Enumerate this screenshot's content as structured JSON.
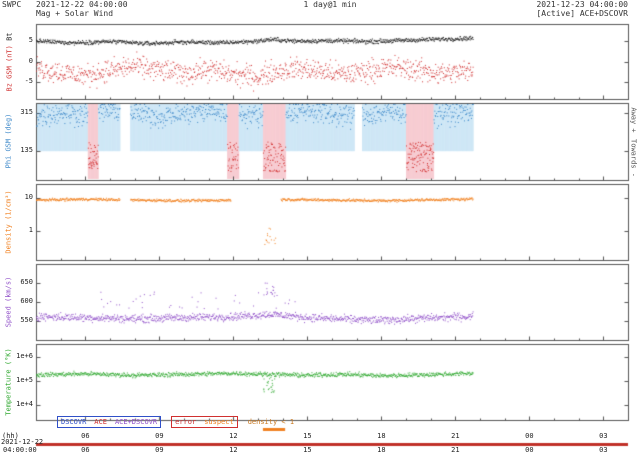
{
  "header": {
    "app": "SWPC",
    "start_time": "2021-12-22 04:00:00",
    "plot_type": "Mag + Solar Wind",
    "resolution": "1 day@1 min",
    "end_time": "2021-12-23 04:00:00",
    "status": "[Active] ACE+DSCOVR"
  },
  "side_labels": {
    "away": "Away +",
    "toward": "Towards -"
  },
  "legend": {
    "dscovr": "DSCOVR",
    "ace": "ACE",
    "ace_dscovr": "ACE+DSCOVR",
    "error": "error",
    "suspect": "suspect",
    "density_lt1": "density < 1"
  },
  "axis_footer": {
    "unit_label": "(hh)",
    "date_label": "2021-12-22",
    "time_label": "04:00:00"
  },
  "colors": {
    "frame": "#555555",
    "bt": "#1a1a1a",
    "bz": "#d03030",
    "phi": "#3b87c8",
    "phi_toward": "#d03030",
    "density": "#f08020",
    "speed": "#9050c8",
    "temperature": "#30a830",
    "away_band": "#cfe7f6",
    "toward_band": "#f7ccd2",
    "suspect": "#f08020",
    "source_bar": "#c03028"
  },
  "chart_data": {
    "type": "scatter",
    "title": "Mag + Solar Wind",
    "cadence": "1 day@1 min",
    "data_end_hour": 17.7,
    "x_axis": {
      "unit": "hh",
      "start": "2021-12-22 04:00:00",
      "end": "2021-12-23 04:00:00",
      "range_hours": [
        0,
        24
      ],
      "ticks": [
        {
          "t": 2,
          "label": "06"
        },
        {
          "t": 5,
          "label": "09"
        },
        {
          "t": 8,
          "label": "12"
        },
        {
          "t": 11,
          "label": "15"
        },
        {
          "t": 14,
          "label": "18"
        },
        {
          "t": 17,
          "label": "21"
        },
        {
          "t": 20,
          "label": "00"
        },
        {
          "t": 23,
          "label": "03"
        }
      ]
    },
    "quality_bars": {
      "suspect_intervals": [
        [
          9.2,
          10.1
        ]
      ],
      "source_bar": {
        "color": "#c03028",
        "interval": [
          0,
          24
        ]
      }
    },
    "panels": [
      {
        "id": "mag",
        "label": "Bt Bz GSM (nT)",
        "label_bt": "Bt",
        "label_bz": "Bz GSM (nT)",
        "scale": "linear",
        "ylim": [
          -9,
          9
        ],
        "yticks": [
          {
            "v": 5,
            "label": "5"
          },
          {
            "v": 0,
            "label": "0"
          },
          {
            "v": -5,
            "label": "-5"
          }
        ],
        "series": [
          {
            "name": "Bt",
            "color": "bt",
            "type": "noisy",
            "noise": 0.25,
            "points": [
              [
                0,
                5.0
              ],
              [
                1.5,
                4.6
              ],
              [
                3,
                4.9
              ],
              [
                4.5,
                4.4
              ],
              [
                6,
                4.8
              ],
              [
                7.5,
                4.6
              ],
              [
                9,
                5.0
              ],
              [
                9.5,
                5.4
              ],
              [
                10.5,
                5.0
              ],
              [
                12,
                5.1
              ],
              [
                13.5,
                4.9
              ],
              [
                15,
                5.2
              ],
              [
                16.5,
                5.5
              ],
              [
                17.7,
                5.7
              ]
            ]
          },
          {
            "name": "Bz",
            "color": "bz",
            "type": "noisy",
            "noise": 1.3,
            "points": [
              [
                0,
                -1.5
              ],
              [
                1,
                -2.5
              ],
              [
                2,
                -3.3
              ],
              [
                3,
                -2.0
              ],
              [
                4,
                -1.0
              ],
              [
                5,
                -2.0
              ],
              [
                6,
                -2.8
              ],
              [
                7,
                -1.8
              ],
              [
                8,
                -3.0
              ],
              [
                9,
                -3.6
              ],
              [
                9.5,
                -2.5
              ],
              [
                10.5,
                -1.5
              ],
              [
                11.5,
                -2.2
              ],
              [
                12.5,
                -3.0
              ],
              [
                13.5,
                -2.0
              ],
              [
                14.5,
                -1.2
              ],
              [
                15.5,
                -2.0
              ],
              [
                16.5,
                -2.8
              ],
              [
                17.7,
                -2.2
              ]
            ]
          }
        ]
      },
      {
        "id": "phi",
        "label": "Phi GSM (deg)",
        "scale": "linear",
        "ylim": [
          0,
          360
        ],
        "yticks": [
          {
            "v": 315,
            "label": "315"
          },
          {
            "v": 135,
            "label": "135"
          }
        ],
        "sector_boundary": 135,
        "toward_intervals": [
          [
            2.1,
            2.5
          ],
          [
            7.75,
            8.2
          ],
          [
            9.2,
            10.1
          ],
          [
            15.0,
            16.1
          ]
        ],
        "gap_intervals": [
          [
            3.4,
            3.8
          ],
          [
            12.9,
            13.2
          ]
        ],
        "series": [
          {
            "name": "Phi (away sector)",
            "color": "phi",
            "type": "noisy",
            "noise": 26,
            "exclude": "toward",
            "points": [
              [
                0,
                300
              ],
              [
                1,
                318
              ],
              [
                2,
                308
              ],
              [
                3,
                330
              ],
              [
                4,
                315
              ],
              [
                5,
                300
              ],
              [
                6,
                312
              ],
              [
                7,
                326
              ],
              [
                8,
                315
              ],
              [
                9,
                305
              ],
              [
                10,
                316
              ],
              [
                11,
                330
              ],
              [
                12,
                310
              ],
              [
                13,
                300
              ],
              [
                14,
                316
              ],
              [
                15,
                322
              ],
              [
                16,
                310
              ],
              [
                17,
                316
              ],
              [
                17.7,
                320
              ]
            ]
          },
          {
            "name": "Phi (toward sector)",
            "color": "phi_toward",
            "type": "column",
            "vrange": [
              40,
              180
            ]
          }
        ]
      },
      {
        "id": "density",
        "label": "Density (1/cm³)",
        "scale": "log",
        "ylim": [
          0.13,
          27
        ],
        "yticks": [
          {
            "v": 10,
            "label": "10"
          },
          {
            "v": 1,
            "label": "1"
          }
        ],
        "series": [
          {
            "name": "Density",
            "color": "density",
            "type": "noisy",
            "lognoise": 0.02,
            "gaps": [
              [
                3.4,
                3.8
              ],
              [
                7.9,
                9.9
              ]
            ],
            "points": [
              [
                0,
                9.0
              ],
              [
                2,
                9.6
              ],
              [
                4,
                9.0
              ],
              [
                6,
                8.6
              ],
              [
                8,
                9.0
              ],
              [
                10,
                9.4
              ],
              [
                12,
                9.0
              ],
              [
                14,
                8.6
              ],
              [
                16,
                9.2
              ],
              [
                17.7,
                9.6
              ]
            ]
          },
          {
            "name": "Density suspect (< 1)",
            "color": "density",
            "type": "cluster",
            "range": [
              9.2,
              9.7
            ],
            "n": 14,
            "vrange": [
              0.4,
              1.3
            ]
          }
        ]
      },
      {
        "id": "speed",
        "label": "Speed (km/s)",
        "scale": "linear",
        "ylim": [
          500,
          700
        ],
        "yticks": [
          {
            "v": 650,
            "label": "650"
          },
          {
            "v": 600,
            "label": "600"
          },
          {
            "v": 550,
            "label": "550"
          }
        ],
        "series": [
          {
            "name": "Speed",
            "color": "speed",
            "type": "noisy",
            "noise": 5,
            "points": [
              [
                0,
                563
              ],
              [
                2,
                560
              ],
              [
                4,
                557
              ],
              [
                6,
                560
              ],
              [
                8,
                563
              ],
              [
                9.5,
                569
              ],
              [
                11,
                560
              ],
              [
                12.5,
                556
              ],
              [
                14,
                553
              ],
              [
                15.5,
                558
              ],
              [
                17,
                562
              ],
              [
                17.7,
                563
              ]
            ]
          },
          {
            "name": "Speed (scattered enhancements)",
            "color": "speed",
            "type": "cluster",
            "range": [
              2.5,
              10.7
            ],
            "n": 40,
            "vrange": [
              583,
              628
            ]
          },
          {
            "name": "Speed (spike cluster)",
            "color": "speed",
            "type": "cluster",
            "range": [
              9.2,
              9.7
            ],
            "n": 16,
            "vrange": [
              615,
              655
            ]
          }
        ]
      },
      {
        "id": "temperature",
        "label": "Temperature (°K)",
        "scale": "log",
        "ylim": [
          2400,
          3500000
        ],
        "yticks": [
          {
            "v": 1000000,
            "label": "1e+6"
          },
          {
            "v": 100000,
            "label": "1e+5"
          },
          {
            "v": 10000,
            "label": "1e+4"
          }
        ],
        "series": [
          {
            "name": "Temperature",
            "color": "temperature",
            "type": "noisy",
            "lognoise": 0.045,
            "points": [
              [
                0,
                190000
              ],
              [
                2,
                210000
              ],
              [
                4,
                182000
              ],
              [
                6,
                200000
              ],
              [
                8,
                219000
              ],
              [
                9.5,
                200000
              ],
              [
                11,
                182000
              ],
              [
                12.5,
                200000
              ],
              [
                14,
                174000
              ],
              [
                15.5,
                190000
              ],
              [
                17,
                209000
              ],
              [
                17.7,
                219000
              ]
            ]
          },
          {
            "name": "Temperature (disturbed cluster)",
            "color": "temperature",
            "type": "cluster",
            "range": [
              9.2,
              9.7
            ],
            "n": 22,
            "vrange": [
              35000,
              140000
            ]
          }
        ]
      }
    ]
  }
}
